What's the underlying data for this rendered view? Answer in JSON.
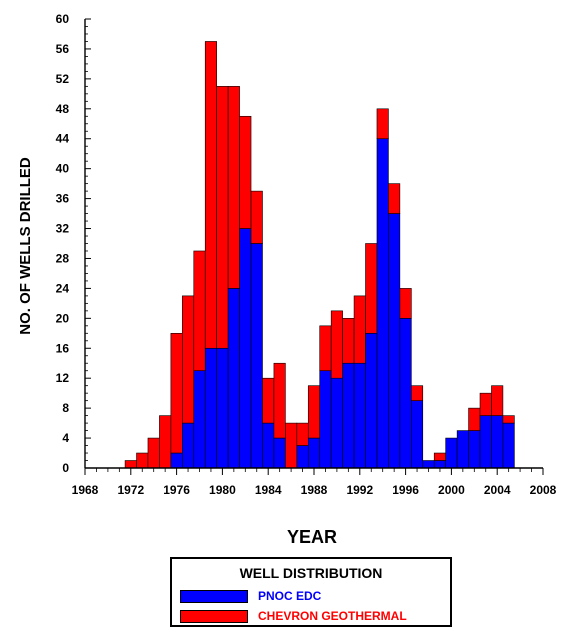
{
  "chart_data": {
    "type": "bar",
    "stacked": true,
    "title": "",
    "xlabel": "YEAR",
    "ylabel": "NO. OF WELLS DRILLED",
    "xlim": [
      1968,
      2008
    ],
    "ylim": [
      0,
      60
    ],
    "x_ticks": [
      1968,
      1972,
      1976,
      1980,
      1984,
      1988,
      1992,
      1996,
      2000,
      2004,
      2008
    ],
    "y_ticks": [
      0,
      4,
      8,
      12,
      16,
      20,
      24,
      28,
      32,
      36,
      40,
      44,
      48,
      52,
      56,
      60
    ],
    "x": [
      1972,
      1973,
      1974,
      1975,
      1976,
      1977,
      1978,
      1979,
      1980,
      1981,
      1982,
      1983,
      1984,
      1985,
      1986,
      1987,
      1988,
      1989,
      1990,
      1991,
      1992,
      1993,
      1994,
      1995,
      1996,
      1997,
      1998,
      1999,
      2000,
      2001,
      2002,
      2003,
      2004,
      2005
    ],
    "series": [
      {
        "name": "PNOC EDC",
        "color": "#0000ff",
        "values": [
          0,
          0,
          0,
          0,
          2,
          6,
          13,
          16,
          16,
          24,
          32,
          30,
          6,
          4,
          0,
          3,
          4,
          13,
          12,
          14,
          14,
          18,
          44,
          34,
          20,
          9,
          1,
          1,
          4,
          5,
          5,
          7,
          7,
          6
        ]
      },
      {
        "name": "CHEVRON GEOTHERMAL",
        "color": "#ff0000",
        "values": [
          1,
          2,
          4,
          7,
          16,
          17,
          16,
          41,
          35,
          27,
          15,
          7,
          6,
          10,
          6,
          3,
          7,
          6,
          9,
          6,
          9,
          12,
          4,
          4,
          4,
          2,
          0,
          1,
          0,
          0,
          3,
          3,
          4,
          1
        ]
      }
    ],
    "legend": {
      "title": "WELL DISTRIBUTION",
      "placement": "bottom"
    }
  }
}
